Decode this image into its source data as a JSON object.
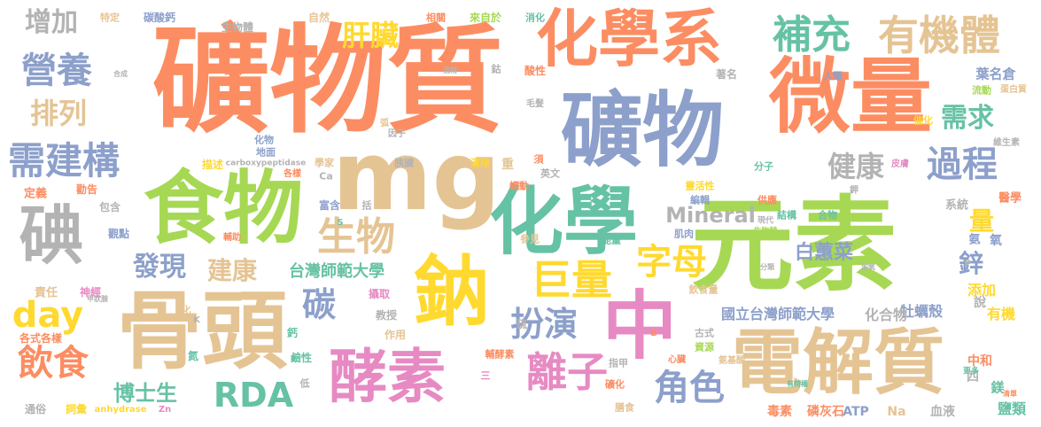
{
  "colors": {
    "orange": "#fc8d62",
    "blue": "#8da0cb",
    "green": "#a6d854",
    "tan": "#e5c494",
    "yellow": "#ffd92f",
    "pink": "#e78ac3",
    "teal": "#66c2a5",
    "gray": "#b3b3b3"
  },
  "words": [
    "礦物質",
    "微量",
    "礦物",
    "元素",
    "化學系",
    "骨頭",
    "電解質",
    "食物",
    "化學",
    "鈉",
    "mg",
    "中",
    "酵素",
    "碘",
    "有機體",
    "補充",
    "營養",
    "生物",
    "需建構",
    "過程",
    "離子",
    "巨量",
    "字母",
    "增加",
    "排列",
    "飲食",
    "扮演",
    "角色",
    "RDA",
    "肝臟",
    "健康",
    "day",
    "碳",
    "發現",
    "Mineral",
    "鋅",
    "需求",
    "量",
    "白蕙菜",
    "建康",
    "博士生",
    "台灣師範大學",
    "國立台灣師範大學",
    "葉名倉",
    "牡蠣殼",
    "化合物",
    "添加",
    "有機",
    "鹽類",
    "毒素",
    "磷灰石",
    "ATP",
    "Na",
    "血液",
    "中和",
    "氧",
    "鎂",
    "四",
    "說",
    "系統",
    "醫學",
    "氨",
    "責任",
    "神經",
    "各式各樣",
    "通俗",
    "詞彙",
    "anhydrase",
    "Zn",
    "定義",
    "勸告",
    "包含",
    "觀點",
    "輔助",
    "鈣",
    "氮",
    "鹼性",
    "低",
    "作用",
    "教授",
    "攝取",
    "碳酸鈣",
    "特定",
    "生物體",
    "自然",
    "相關",
    "來自於",
    "消化",
    "鈷",
    "酸性",
    "註釋",
    "人類",
    "著名",
    "流動",
    "蛋白質",
    "維生素",
    "催化",
    "分子",
    "皮膚",
    "供應",
    "結構",
    "合物",
    "肌肉",
    "參見",
    "能量",
    "飲食量",
    "古式",
    "資源",
    "心臟",
    "氨基酸",
    "硫",
    "輔酵素",
    "指甲",
    "礦化",
    "膳食",
    "重",
    "須",
    "英文",
    "清除",
    "胰臟",
    "學家",
    "描述",
    "carboxypeptidase",
    "各樣",
    "Ca",
    "括",
    "富含",
    "蠕動",
    "靈活性",
    "編輯",
    "化物",
    "地面",
    "弧",
    "因子",
    "毛髮",
    "K",
    "S",
    "P",
    "B",
    "鉀",
    "更多",
    "分類",
    "加氧",
    "有特權",
    "甲狀腺",
    "合成",
    "酒精",
    "清單",
    "三",
    "化",
    "現代",
    "生物酸"
  ]
}
